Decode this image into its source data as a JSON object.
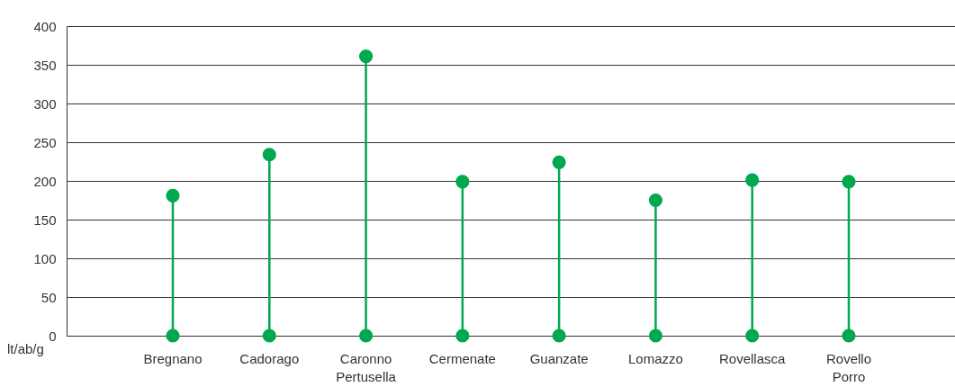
{
  "chart_data": {
    "type": "lollipop",
    "ylabel": "lt/ab/g",
    "categories": [
      "Bregnano",
      "Cadorago",
      "Caronno Pertusella",
      "Cermenate",
      "Guanzate",
      "Lomazzo",
      "Rovellasca",
      "Rovello Porro"
    ],
    "series": [
      {
        "color": "#00a84f",
        "values": [
          181,
          234,
          361,
          199,
          224,
          175,
          201,
          199
        ]
      },
      {
        "type": "scatter",
        "color": "#00a84f",
        "values": [
          0,
          0,
          0,
          0,
          0,
          0,
          0,
          0
        ]
      }
    ],
    "ylim": [
      0,
      400
    ],
    "yticks": [
      0,
      50,
      100,
      150,
      200,
      250,
      300,
      350,
      400
    ],
    "grid": "y",
    "marker": "circle"
  }
}
